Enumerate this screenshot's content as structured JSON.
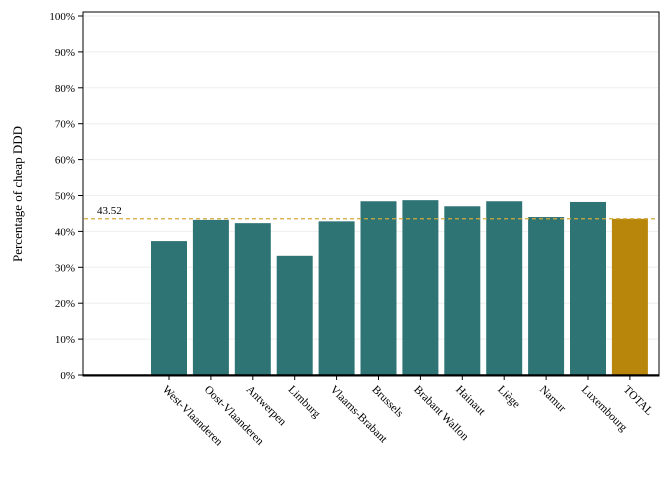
{
  "chart_data": {
    "type": "bar",
    "ylabel": "Percentage of cheap DDD",
    "ylim": [
      0,
      100
    ],
    "yticks": [
      "0%",
      "10%",
      "20%",
      "30%",
      "40%",
      "50%",
      "60%",
      "70%",
      "80%",
      "90%",
      "100%"
    ],
    "categories": [
      "West-Vlaanderen",
      "Oost-Vlaanderen",
      "Antwerpen",
      "Limburg",
      "Vlaams-Brabant",
      "Brussels",
      "Brabant Wallon",
      "Hainaut",
      "Liège",
      "Namur",
      "Luxembourg",
      "TOTAL"
    ],
    "values": [
      37.3,
      43.2,
      42.3,
      33.2,
      42.8,
      48.4,
      48.7,
      47.0,
      48.4,
      44.0,
      48.2,
      43.5
    ],
    "highlight_category": "TOTAL",
    "reference_line": {
      "value": 43.52,
      "label": "43.52"
    },
    "grid": true,
    "colors": {
      "bar": "#2e7474",
      "highlight": "#b8860b",
      "reference": "#d4a83a",
      "grid": "#eeeeee",
      "axis": "#000000"
    }
  }
}
